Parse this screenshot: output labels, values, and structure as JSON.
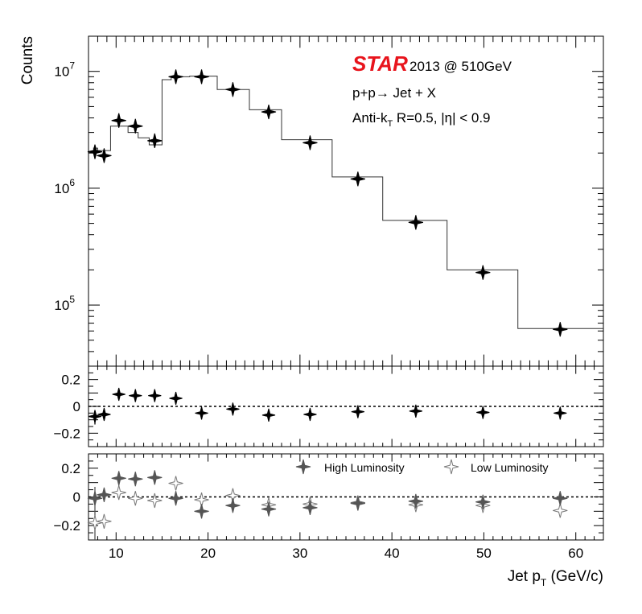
{
  "chart_data": [
    {
      "type": "step-histogram-with-points",
      "panel": "main",
      "ylabel": "Counts",
      "yscale": "log",
      "ylim": [
        30000,
        20000000
      ],
      "xlim": [
        7,
        63
      ],
      "annotations": {
        "star": "STAR",
        "energy": "2013 @ 510GeV",
        "process": "p+p→ Jet + X",
        "algo_prefix": "Anti-k",
        "algo_sub": "T",
        "algo_suffix": " R=0.5, |η| < 0.9"
      },
      "yticks": [
        {
          "value": 100000,
          "base": "10",
          "exp": "5"
        },
        {
          "value": 1000000,
          "base": "10",
          "exp": "6"
        },
        {
          "value": 10000000,
          "base": "10",
          "exp": "7"
        }
      ],
      "histogram": {
        "edges": [
          7.5,
          8.0,
          9.4,
          10.3,
          11.3,
          12.4,
          13.6,
          15.0,
          16.0,
          18.0,
          21.0,
          24.5,
          28.0,
          33.5,
          39.0,
          46.0,
          53.7,
          63.0
        ],
        "values": [
          2200000,
          2100000,
          3400000,
          3400000,
          3000000,
          2700000,
          2350000,
          8500000,
          9000000,
          9100000,
          7000000,
          4700000,
          2600000,
          1250000,
          530000,
          200000,
          63000
        ]
      },
      "points": {
        "x": [
          7.7,
          8.7,
          10.3,
          12.1,
          14.2,
          16.5,
          19.3,
          22.7,
          26.6,
          31.1,
          36.3,
          42.6,
          49.9,
          58.3
        ],
        "y": [
          2050000,
          1900000,
          3800000,
          3400000,
          2550000,
          9000000,
          9000000,
          7000000,
          4500000,
          2450000,
          1200000,
          510000,
          190000,
          62000
        ]
      }
    },
    {
      "type": "scatter",
      "panel": "ratio",
      "ylim": [
        -0.3,
        0.3
      ],
      "xlim": [
        7,
        63
      ],
      "yticks": [
        0.2,
        0,
        -0.2
      ],
      "ytick_labels": [
        "0.2",
        "0",
        "−0.2"
      ],
      "points": {
        "x": [
          7.7,
          8.7,
          10.3,
          12.1,
          14.2,
          16.5,
          19.3,
          22.7,
          26.6,
          31.1,
          36.3,
          42.6,
          49.9,
          58.3
        ],
        "y": [
          -0.075,
          -0.06,
          0.09,
          0.08,
          0.08,
          0.06,
          -0.05,
          -0.02,
          -0.065,
          -0.06,
          -0.04,
          -0.035,
          -0.045,
          -0.05
        ],
        "yerr_low": [
          0.06,
          0.01,
          0,
          0,
          0,
          0,
          0,
          0,
          0,
          0,
          0,
          0,
          0,
          0
        ],
        "yerr_high": [
          0.04,
          0.01,
          0,
          0,
          0,
          0,
          0,
          0,
          0,
          0,
          0,
          0,
          0,
          0
        ]
      }
    },
    {
      "type": "scatter",
      "panel": "luminosity",
      "ylim": [
        -0.3,
        0.3
      ],
      "xlim": [
        7,
        63
      ],
      "yticks": [
        0.2,
        0,
        -0.2
      ],
      "ytick_labels": [
        "0.2",
        "0",
        "−0.2"
      ],
      "xlabel": "Jet p",
      "xlabel_sub": "T",
      "xlabel_suffix": " (GeV/c)",
      "xticks": [
        10,
        20,
        30,
        40,
        50,
        60
      ],
      "xtick_labels": [
        "10",
        "20",
        "30",
        "40",
        "50",
        "60"
      ],
      "legend_position": "top-right",
      "series": [
        {
          "name": "High Luminosity",
          "color": "#555555",
          "marker": "filled-star",
          "x": [
            7.7,
            8.7,
            10.3,
            12.1,
            14.2,
            16.5,
            19.3,
            22.7,
            26.6,
            31.1,
            36.3,
            42.6,
            49.9,
            58.3
          ],
          "y": [
            -0.01,
            0.015,
            0.13,
            0.125,
            0.135,
            -0.01,
            -0.1,
            -0.06,
            -0.085,
            -0.075,
            -0.045,
            -0.03,
            -0.035,
            -0.01
          ]
        },
        {
          "name": "Low Luminosity",
          "color": "#777777",
          "marker": "open-star",
          "x": [
            7.7,
            8.7,
            10.3,
            12.1,
            14.2,
            16.5,
            19.3,
            22.7,
            26.6,
            31.1,
            36.3,
            42.6,
            49.9,
            58.3
          ],
          "y": [
            -0.18,
            -0.17,
            0.03,
            -0.01,
            -0.025,
            0.095,
            -0.02,
            0.01,
            -0.055,
            -0.05,
            -0.04,
            -0.055,
            -0.06,
            -0.095
          ]
        }
      ]
    }
  ]
}
